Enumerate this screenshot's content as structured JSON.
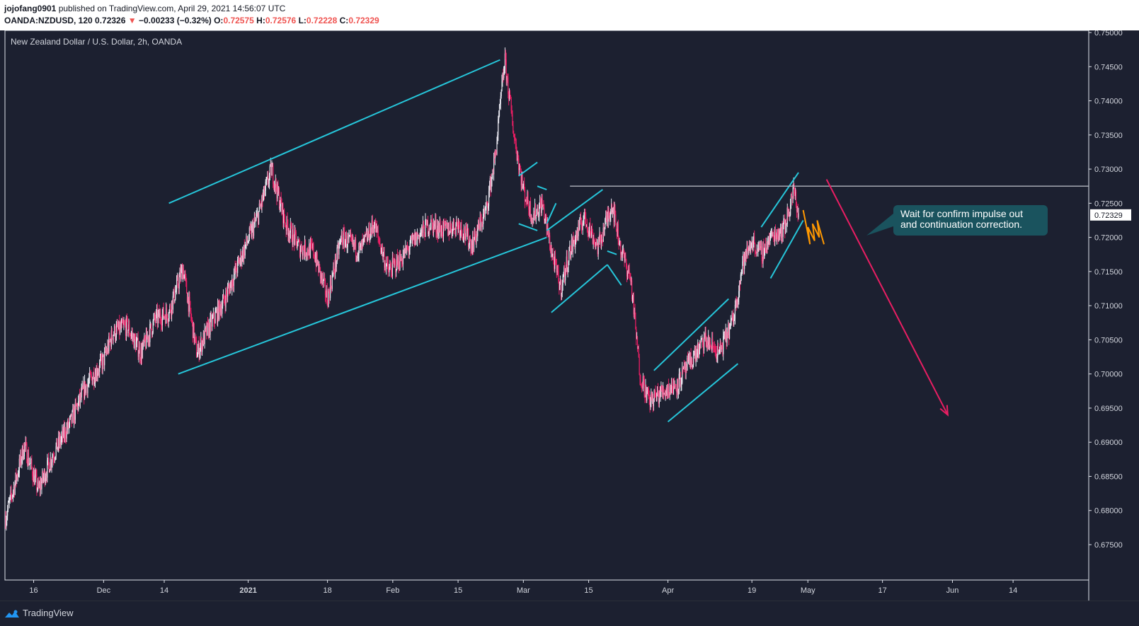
{
  "header": {
    "publisher": "jojofang0901",
    "published_text": "published on TradingView.com, April 29, 2021 14:56:07 UTC",
    "symbol": "OANDA:NZDUSD, 120",
    "last": "0.72326",
    "change_arrow": "▼",
    "change": "−0.00233 (−0.32%)",
    "o_label": "O:",
    "o_value": "0.72575",
    "h_label": "H:",
    "h_value": "0.72576",
    "l_label": "L:",
    "l_value": "0.72228",
    "c_label": "C:",
    "c_value": "0.72329"
  },
  "footer": {
    "brand": "TradingView",
    "logo_icon": "tradingview-logo-icon"
  },
  "colors": {
    "background": "#1c2030",
    "up_candle": "#e6e6ee",
    "down_candle": "#e91e63",
    "channel": "#26c6da",
    "resistance": "#b2b5be",
    "projection": "#ff9800",
    "target_arrow": "#e91e63",
    "callout_bg": "#1a535e",
    "price_label_bg": "#ffffff"
  },
  "chart_data": {
    "type": "candlestick",
    "title": "New Zealand Dollar / U.S. Dollar, 2h, OANDA",
    "current_price_label": "0.72329",
    "ylim": [
      0.671,
      0.75
    ],
    "y_ticks": [
      "0.75000",
      "0.74500",
      "0.74000",
      "0.73500",
      "0.73000",
      "0.72500",
      "0.72000",
      "0.71500",
      "0.71000",
      "0.70500",
      "0.70000",
      "0.69500",
      "0.69000",
      "0.68500",
      "0.68000",
      "0.67500"
    ],
    "x_ticks": [
      {
        "label": "16",
        "date": "2020-11-16"
      },
      {
        "label": "Dec",
        "date": "2020-12-01"
      },
      {
        "label": "14",
        "date": "2020-12-14"
      },
      {
        "label": "2021",
        "date": "2021-01-01"
      },
      {
        "label": "18",
        "date": "2021-01-18"
      },
      {
        "label": "Feb",
        "date": "2021-02-01"
      },
      {
        "label": "15",
        "date": "2021-02-15"
      },
      {
        "label": "Mar",
        "date": "2021-03-01"
      },
      {
        "label": "15",
        "date": "2021-03-15"
      },
      {
        "label": "Apr",
        "date": "2021-04-01"
      },
      {
        "label": "19",
        "date": "2021-04-19"
      },
      {
        "label": "May",
        "date": "2021-05-01"
      },
      {
        "label": "17",
        "date": "2021-05-17"
      },
      {
        "label": "Jun",
        "date": "2021-06-01"
      },
      {
        "label": "14",
        "date": "2021-06-14"
      }
    ],
    "x_range": [
      "2020-11-10",
      "2021-06-24"
    ],
    "price_path": [
      [
        "2020-11-10",
        0.679
      ],
      [
        "2020-11-12",
        0.684
      ],
      [
        "2020-11-14",
        0.6895
      ],
      [
        "2020-11-17",
        0.683
      ],
      [
        "2020-11-20",
        0.688
      ],
      [
        "2020-11-24",
        0.693
      ],
      [
        "2020-11-27",
        0.698
      ],
      [
        "2020-12-01",
        0.702
      ],
      [
        "2020-12-03",
        0.706
      ],
      [
        "2020-12-06",
        0.707
      ],
      [
        "2020-12-09",
        0.703
      ],
      [
        "2020-12-12",
        0.708
      ],
      [
        "2020-12-15",
        0.709
      ],
      [
        "2020-12-18",
        0.7155
      ],
      [
        "2020-12-21",
        0.703
      ],
      [
        "2020-12-23",
        0.706
      ],
      [
        "2020-12-27",
        0.711
      ],
      [
        "2020-12-31",
        0.718
      ],
      [
        "2021-01-03",
        0.723
      ],
      [
        "2021-01-06",
        0.73
      ],
      [
        "2021-01-09",
        0.722
      ],
      [
        "2021-01-12",
        0.7185
      ],
      [
        "2021-01-15",
        0.718
      ],
      [
        "2021-01-18",
        0.711
      ],
      [
        "2021-01-21",
        0.72
      ],
      [
        "2021-01-25",
        0.718
      ],
      [
        "2021-01-28",
        0.722
      ],
      [
        "2021-01-31",
        0.715
      ],
      [
        "2021-02-03",
        0.717
      ],
      [
        "2021-02-06",
        0.72
      ],
      [
        "2021-02-09",
        0.722
      ],
      [
        "2021-02-12",
        0.721
      ],
      [
        "2021-02-15",
        0.722
      ],
      [
        "2021-02-18",
        0.719
      ],
      [
        "2021-02-21",
        0.724
      ],
      [
        "2021-02-23",
        0.732
      ],
      [
        "2021-02-25",
        0.746
      ],
      [
        "2021-02-27",
        0.735
      ],
      [
        "2021-03-01",
        0.727
      ],
      [
        "2021-03-03",
        0.723
      ],
      [
        "2021-03-05",
        0.725
      ],
      [
        "2021-03-07",
        0.718
      ],
      [
        "2021-03-09",
        0.7125
      ],
      [
        "2021-03-11",
        0.718
      ],
      [
        "2021-03-14",
        0.723
      ],
      [
        "2021-03-17",
        0.7185
      ],
      [
        "2021-03-20",
        0.725
      ],
      [
        "2021-03-22",
        0.718
      ],
      [
        "2021-03-24",
        0.714
      ],
      [
        "2021-03-26",
        0.7
      ],
      [
        "2021-03-28",
        0.696
      ],
      [
        "2021-03-31",
        0.6975
      ],
      [
        "2021-04-03",
        0.6985
      ],
      [
        "2021-04-06",
        0.702
      ],
      [
        "2021-04-09",
        0.705
      ],
      [
        "2021-04-12",
        0.703
      ],
      [
        "2021-04-15",
        0.708
      ],
      [
        "2021-04-17",
        0.716
      ],
      [
        "2021-04-19",
        0.7195
      ],
      [
        "2021-04-21",
        0.7175
      ],
      [
        "2021-04-23",
        0.72
      ],
      [
        "2021-04-26",
        0.7215
      ],
      [
        "2021-04-28",
        0.727
      ],
      [
        "2021-04-29",
        0.72326
      ]
    ],
    "annotations": {
      "callout_text": [
        "Wait for confirm impulse out",
        "and continuation correction."
      ],
      "resistance_level": 0.7275,
      "target_arrow": {
        "from": [
          "2021-05-05",
          0.7285
        ],
        "to": [
          "2021-05-31",
          0.694
        ]
      }
    },
    "drawings": [
      {
        "type": "channel-line",
        "from": [
          "2020-12-15",
          0.725
        ],
        "to": [
          "2021-02-24",
          0.746
        ]
      },
      {
        "type": "channel-line",
        "from": [
          "2020-12-17",
          0.7
        ],
        "to": [
          "2021-03-06",
          0.72
        ]
      },
      {
        "type": "channel-line",
        "from": [
          "2021-02-28",
          0.729
        ],
        "to": [
          "2021-03-04",
          0.731
        ]
      },
      {
        "type": "channel-line",
        "from": [
          "2021-02-28",
          0.722
        ],
        "to": [
          "2021-03-04",
          0.721
        ]
      },
      {
        "type": "channel-line",
        "from": [
          "2021-03-04",
          0.7275
        ],
        "to": [
          "2021-03-06",
          0.727
        ]
      },
      {
        "type": "channel-line",
        "from": [
          "2021-03-06",
          0.722
        ],
        "to": [
          "2021-03-08",
          0.725
        ]
      },
      {
        "type": "channel-line",
        "from": [
          "2021-03-06",
          0.721
        ],
        "to": [
          "2021-03-18",
          0.727
        ]
      },
      {
        "type": "channel-line",
        "from": [
          "2021-03-07",
          0.709
        ],
        "to": [
          "2021-03-19",
          0.716
        ]
      },
      {
        "type": "channel-line",
        "from": [
          "2021-03-19",
          0.718
        ],
        "to": [
          "2021-03-21",
          0.7175
        ]
      },
      {
        "type": "channel-line",
        "from": [
          "2021-03-19",
          0.716
        ],
        "to": [
          "2021-03-22",
          0.713
        ]
      },
      {
        "type": "channel-line",
        "from": [
          "2021-03-29",
          0.7005
        ],
        "to": [
          "2021-04-14",
          0.711
        ]
      },
      {
        "type": "channel-line",
        "from": [
          "2021-04-01",
          0.693
        ],
        "to": [
          "2021-04-16",
          0.7015
        ]
      },
      {
        "type": "channel-line",
        "from": [
          "2021-04-21",
          0.7215
        ],
        "to": [
          "2021-04-29",
          0.7295
        ]
      },
      {
        "type": "channel-line",
        "from": [
          "2021-04-23",
          0.714
        ],
        "to": [
          "2021-04-30",
          0.7225
        ]
      }
    ],
    "projection_path": [
      [
        "2021-04-30",
        0.724
      ],
      [
        "2021-05-01",
        0.719
      ],
      [
        "2021-05-01",
        0.7215
      ],
      [
        "2021-05-02",
        0.7195
      ],
      [
        "2021-05-02",
        0.722
      ],
      [
        "2021-05-03",
        0.72
      ],
      [
        "2021-05-03",
        0.7225
      ],
      [
        "2021-05-04",
        0.719
      ]
    ]
  }
}
